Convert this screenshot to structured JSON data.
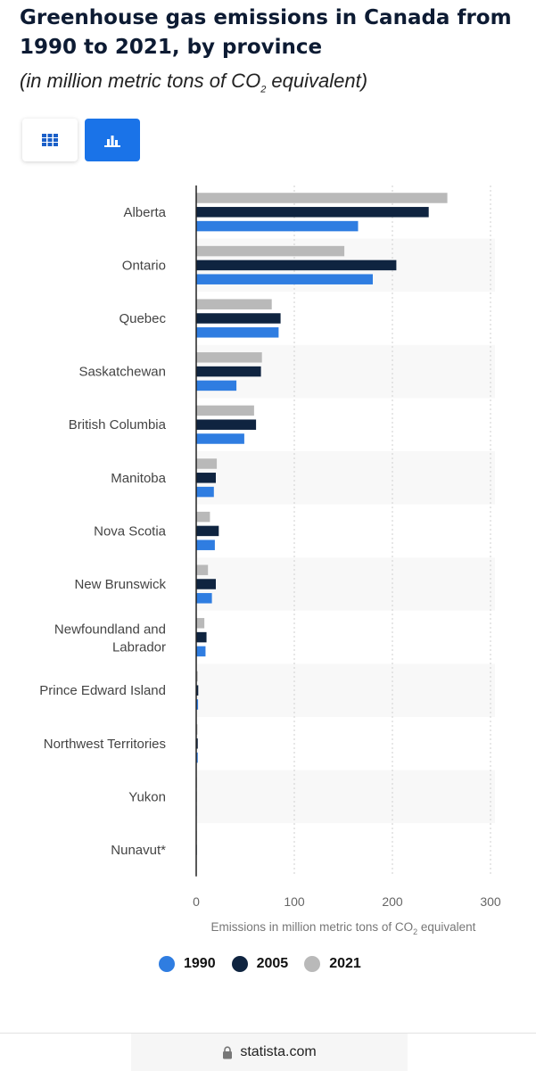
{
  "header": {
    "title": "Greenhouse gas emissions in Canada from 1990 to 2021, by province",
    "subtitle_main": "(in million metric tons of CO",
    "subtitle_sub": "2",
    "subtitle_tail": " equivalent)"
  },
  "toggles": {
    "table_icon": "table-grid-icon",
    "chart_icon": "bar-chart-icon"
  },
  "colors": {
    "accent": "#1a73e8",
    "s1990": "#2f7de1",
    "s2005": "#0f2440",
    "s2021": "#b9b9b9"
  },
  "chart_data": {
    "type": "bar",
    "orientation": "horizontal",
    "categories": [
      "Alberta",
      "Ontario",
      "Quebec",
      "Saskatchewan",
      "British Columbia",
      "Manitoba",
      "Nova Scotia",
      "New Brunswick",
      "Newfoundland and Labrador",
      "Prince Edward Island",
      "Northwest Territories",
      "Yukon",
      "Nunavut*"
    ],
    "series": [
      {
        "name": "1990",
        "values": [
          165,
          180,
          84,
          41,
          49,
          18,
          19,
          16,
          9.5,
          1.9,
          1.6,
          0.5,
          0.1
        ]
      },
      {
        "name": "2005",
        "values": [
          237,
          204,
          86,
          66,
          61,
          20,
          23,
          20,
          10.5,
          2.1,
          1.6,
          0.5,
          0.6
        ]
      },
      {
        "name": "2021",
        "values": [
          256,
          151,
          77,
          67,
          59,
          21,
          14,
          12,
          8.3,
          1.6,
          1.3,
          0.6,
          0.6
        ]
      }
    ],
    "xlim": [
      0,
      300
    ],
    "ticks": [
      "0",
      "100",
      "200",
      "300"
    ],
    "xlabel_main": "Emissions in million metric tons of CO",
    "xlabel_sub": "2",
    "xlabel_tail": " equivalent",
    "grid": true,
    "legend_position": "bottom"
  },
  "legend": [
    {
      "label": "1990",
      "color": "#2f7de1"
    },
    {
      "label": "2005",
      "color": "#0f2440"
    },
    {
      "label": "2021",
      "color": "#b9b9b9"
    }
  ],
  "footer": {
    "source": "statista.com",
    "icon": "lock-icon"
  }
}
